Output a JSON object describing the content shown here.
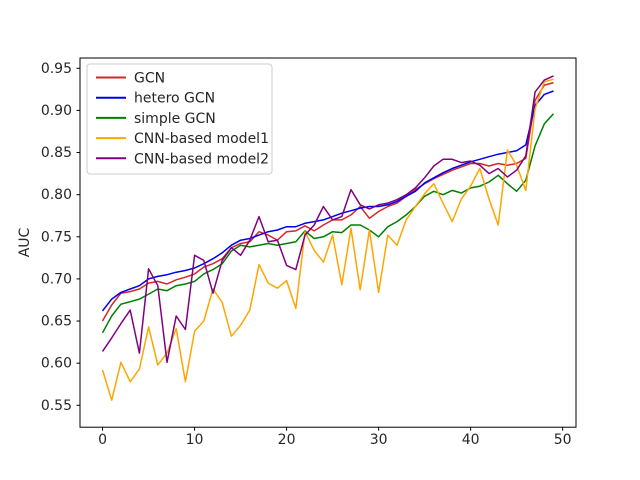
{
  "chart_data": {
    "type": "line",
    "title": "",
    "xlabel": "",
    "ylabel": "AUC",
    "grid": false,
    "legend_position": "upper left",
    "xlim": [
      -2.45,
      51.45
    ],
    "ylim": [
      0.524,
      0.9622
    ],
    "xticks": [
      0,
      10,
      20,
      30,
      40,
      50
    ],
    "yticks": [
      0.55,
      0.6,
      0.65,
      0.7,
      0.75,
      0.8,
      0.85,
      0.9,
      0.95
    ],
    "x": [
      0,
      1,
      2,
      3,
      4,
      5,
      6,
      7,
      8,
      9,
      10,
      11,
      12,
      13,
      14,
      15,
      16,
      17,
      18,
      19,
      20,
      21,
      22,
      23,
      24,
      25,
      26,
      27,
      28,
      29,
      30,
      31,
      32,
      33,
      34,
      35,
      36,
      37,
      38,
      39,
      40,
      41,
      42,
      43,
      44,
      45,
      46,
      47,
      48,
      49
    ],
    "series": [
      {
        "name": "GCN",
        "color": "#d62728",
        "values": [
          0.65,
          0.669,
          0.683,
          0.685,
          0.688,
          0.695,
          0.697,
          0.694,
          0.699,
          0.702,
          0.706,
          0.714,
          0.718,
          0.724,
          0.737,
          0.742,
          0.744,
          0.756,
          0.752,
          0.746,
          0.756,
          0.757,
          0.763,
          0.757,
          0.764,
          0.77,
          0.77,
          0.776,
          0.786,
          0.772,
          0.78,
          0.786,
          0.79,
          0.798,
          0.806,
          0.813,
          0.819,
          0.824,
          0.829,
          0.833,
          0.837,
          0.837,
          0.834,
          0.837,
          0.835,
          0.837,
          0.843,
          0.912,
          0.93,
          0.933
        ]
      },
      {
        "name": "hetero GCN",
        "color": "#0000ee",
        "values": [
          0.662,
          0.676,
          0.684,
          0.688,
          0.692,
          0.7,
          0.703,
          0.705,
          0.708,
          0.71,
          0.713,
          0.718,
          0.724,
          0.731,
          0.74,
          0.746,
          0.748,
          0.752,
          0.756,
          0.758,
          0.762,
          0.762,
          0.766,
          0.768,
          0.77,
          0.774,
          0.778,
          0.781,
          0.784,
          0.786,
          0.786,
          0.788,
          0.792,
          0.798,
          0.804,
          0.814,
          0.82,
          0.826,
          0.831,
          0.835,
          0.839,
          0.842,
          0.845,
          0.848,
          0.85,
          0.852,
          0.859,
          0.906,
          0.919,
          0.923
        ]
      },
      {
        "name": "simple GCN",
        "color": "#008000",
        "values": [
          0.636,
          0.656,
          0.67,
          0.673,
          0.676,
          0.682,
          0.688,
          0.686,
          0.692,
          0.694,
          0.697,
          0.706,
          0.711,
          0.718,
          0.733,
          0.74,
          0.738,
          0.74,
          0.742,
          0.74,
          0.742,
          0.744,
          0.757,
          0.748,
          0.75,
          0.756,
          0.755,
          0.764,
          0.764,
          0.758,
          0.75,
          0.762,
          0.768,
          0.776,
          0.786,
          0.798,
          0.804,
          0.8,
          0.805,
          0.802,
          0.808,
          0.81,
          0.815,
          0.823,
          0.813,
          0.804,
          0.817,
          0.858,
          0.884,
          0.896
        ]
      },
      {
        "name": "CNN-based model1",
        "color": "#ffa500",
        "values": [
          0.592,
          0.556,
          0.601,
          0.578,
          0.593,
          0.643,
          0.598,
          0.612,
          0.641,
          0.578,
          0.638,
          0.65,
          0.688,
          0.672,
          0.632,
          0.645,
          0.663,
          0.717,
          0.695,
          0.689,
          0.698,
          0.665,
          0.756,
          0.734,
          0.72,
          0.752,
          0.693,
          0.76,
          0.687,
          0.758,
          0.684,
          0.752,
          0.74,
          0.77,
          0.786,
          0.801,
          0.813,
          0.79,
          0.768,
          0.795,
          0.81,
          0.831,
          0.795,
          0.764,
          0.853,
          0.835,
          0.805,
          0.902,
          0.934,
          0.937
        ]
      },
      {
        "name": "CNN-based model2",
        "color": "#800080",
        "values": [
          0.614,
          0.63,
          0.647,
          0.663,
          0.612,
          0.712,
          0.692,
          0.601,
          0.656,
          0.64,
          0.728,
          0.722,
          0.683,
          0.722,
          0.737,
          0.728,
          0.746,
          0.774,
          0.744,
          0.746,
          0.716,
          0.711,
          0.752,
          0.764,
          0.786,
          0.77,
          0.774,
          0.806,
          0.788,
          0.783,
          0.788,
          0.79,
          0.794,
          0.8,
          0.808,
          0.82,
          0.834,
          0.842,
          0.842,
          0.838,
          0.84,
          0.835,
          0.825,
          0.831,
          0.821,
          0.829,
          0.846,
          0.922,
          0.936,
          0.941
        ]
      }
    ]
  }
}
